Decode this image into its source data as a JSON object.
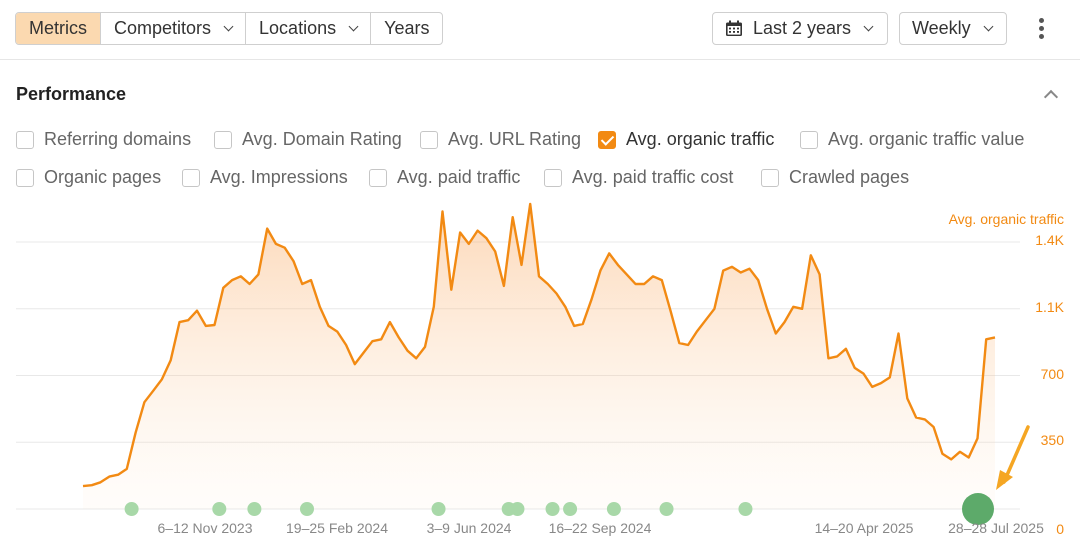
{
  "toolbar": {
    "tabs": [
      {
        "label": "Metrics",
        "active": true,
        "has_dropdown": false
      },
      {
        "label": "Competitors",
        "active": false,
        "has_dropdown": true
      },
      {
        "label": "Locations",
        "active": false,
        "has_dropdown": true
      },
      {
        "label": "Years",
        "active": false,
        "has_dropdown": false
      }
    ],
    "date_range": "Last 2 years",
    "date_range_icon": "calendar-icon",
    "granularity": "Weekly",
    "more_icon": "kebab-menu-icon"
  },
  "section": {
    "title": "Performance",
    "collapse_icon": "chevron-up-icon"
  },
  "metrics": [
    {
      "label": "Referring domains",
      "checked": false
    },
    {
      "label": "Avg. Domain Rating",
      "checked": false
    },
    {
      "label": "Avg. URL Rating",
      "checked": false
    },
    {
      "label": "Avg. organic traffic",
      "checked": true
    },
    {
      "label": "Avg. organic traffic value",
      "checked": false
    },
    {
      "label": "Organic pages",
      "checked": false
    },
    {
      "label": "Avg. Impressions",
      "checked": false
    },
    {
      "label": "Avg. paid traffic",
      "checked": false
    },
    {
      "label": "Avg. paid traffic cost",
      "checked": false
    },
    {
      "label": "Crawled pages",
      "checked": false
    }
  ],
  "colors": {
    "accent": "#f28a13",
    "active_tab": "#fbd9b0",
    "marker": "#a8d8a8",
    "marker_highlight": "#5daa6a",
    "annotation_arrow": "#f5a623"
  },
  "chart_data": {
    "type": "area",
    "series": [
      {
        "name": "Avg. organic traffic",
        "color": "#f28a13",
        "values": [
          120,
          125,
          140,
          170,
          180,
          210,
          400,
          560,
          620,
          680,
          780,
          980,
          990,
          1040,
          960,
          965,
          1160,
          1200,
          1220,
          1180,
          1230,
          1470,
          1390,
          1370,
          1300,
          1180,
          1200,
          1060,
          960,
          930,
          860,
          760,
          820,
          880,
          890,
          980,
          900,
          830,
          790,
          850,
          1060,
          1560,
          1150,
          1450,
          1390,
          1460,
          1420,
          1350,
          1170,
          1530,
          1280,
          1600,
          1220,
          1180,
          1130,
          1060,
          960,
          970,
          1100,
          1250,
          1340,
          1280,
          1230,
          1180,
          1180,
          1220,
          1200,
          1040,
          870,
          860,
          930,
          990,
          1050,
          1250,
          1270,
          1240,
          1260,
          1200,
          1050,
          920,
          980,
          1060,
          1050,
          1330,
          1230,
          790,
          800,
          840,
          740,
          710,
          640,
          660,
          690,
          920,
          580,
          480,
          470,
          430,
          290,
          260,
          300,
          270,
          370,
          890,
          900
        ]
      }
    ],
    "x_tick_labels": [
      "6–12 Nov 2023",
      "19–25 Feb 2024",
      "3–9 Jun 2024",
      "16–22 Sep 2024",
      "14–20 Apr 2025",
      "28–28 Jul 2025"
    ],
    "y_tick_labels": [
      "0",
      "350",
      "700",
      "1.1K",
      "1.4K"
    ],
    "ylim": [
      0,
      1400
    ],
    "y_axis_position": "right",
    "legend": "Avg. organic traffic",
    "legend_position": "top-right",
    "grid": true,
    "annotation_markers": [
      {
        "week": 6,
        "highlight": false
      },
      {
        "week": 16,
        "highlight": false
      },
      {
        "week": 20,
        "highlight": false
      },
      {
        "week": 26,
        "highlight": false
      },
      {
        "week": 41,
        "highlight": false
      },
      {
        "week": 49,
        "highlight": false
      },
      {
        "week": 50,
        "highlight": false
      },
      {
        "week": 54,
        "highlight": false
      },
      {
        "week": 56,
        "highlight": false
      },
      {
        "week": 61,
        "highlight": false
      },
      {
        "week": 67,
        "highlight": false
      },
      {
        "week": 76,
        "highlight": false
      },
      {
        "week": 104,
        "highlight": true
      }
    ]
  }
}
